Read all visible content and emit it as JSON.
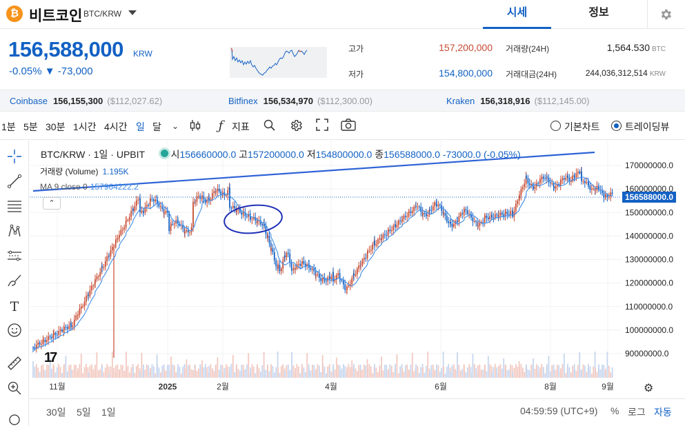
{
  "header": {
    "coin_name": "비트코인",
    "pair": "BTC/KRW",
    "tabs": [
      {
        "label": "시세"
      },
      {
        "label": "정보"
      }
    ]
  },
  "price": {
    "current": "156,588,000",
    "unit": "KRW",
    "change_pct": "-0.05%",
    "change_arrow": "▼",
    "change_abs": "-73,000"
  },
  "stats": {
    "high_label": "고가",
    "high_value": "157,200,000",
    "low_label": "저가",
    "low_value": "154,800,000",
    "vol_label": "거래량(24H)",
    "vol_value": "1,564.530",
    "vol_unit": "BTC",
    "amt_label": "거래대금(24H)",
    "amt_value": "244,036,312,514",
    "amt_unit": "KRW"
  },
  "exchanges": [
    {
      "name": "Coinbase",
      "krw": "156,155,300",
      "usd": "($112,027.62)"
    },
    {
      "name": "Bitfinex",
      "krw": "156,534,970",
      "usd": "($112,300.00)"
    },
    {
      "name": "Kraken",
      "krw": "156,318,916",
      "usd": "($112,145.00)"
    }
  ],
  "toolbar": {
    "intervals": [
      "1분",
      "5분",
      "30분",
      "1시간",
      "4시간",
      "일",
      "달"
    ],
    "active_interval": "일",
    "indicator_label": "지표",
    "view_basic": "기본차트",
    "view_tv": "트레이딩뷰"
  },
  "legend": {
    "symbol": "BTC/KRW · 1일 · UPBIT",
    "open_label": "시",
    "open": "156660000.0",
    "high_label": "고",
    "high": "157200000.0",
    "low_label": "저",
    "low": "154800000.0",
    "close_label": "종",
    "close": "156588000.0",
    "change": "-73000.0 (-0.05%)",
    "volume_label": "거래량 (Volume)",
    "volume_value": "1.195K",
    "ma_label": "MA 9 close 0",
    "ma_value": "157964222.2"
  },
  "icons": {
    "toolbar": [
      "candle-icon",
      "fx-icon",
      "magnifier-icon",
      "gear-icon",
      "fullscreen-icon",
      "camera-icon"
    ],
    "left": [
      "crosshair-icon",
      "trendline-icon",
      "fib-icon",
      "pattern-icon",
      "projection-icon",
      "brush-icon",
      "text-icon",
      "emoji-icon",
      "ruler-icon",
      "zoom-icon",
      "magnet-icon"
    ]
  },
  "chart_data": {
    "type": "candlestick",
    "price_axis": [
      "170000000.0",
      "160000000.0",
      "150000000.0",
      "140000000.0",
      "130000000.0",
      "120000000.0",
      "110000000.0",
      "100000000.0",
      "90000000.0"
    ],
    "current_price_label": "156588000.0",
    "x_ticks": [
      "11월",
      "2025",
      "2월",
      "4월",
      "6월",
      "8월",
      "9월"
    ],
    "ylim": [
      85000000,
      175000000
    ],
    "colors": {
      "up": "#c84a31",
      "down": "#1261c4",
      "ma": "#3d8ce6",
      "trendline": "#2e63d6"
    }
  },
  "bottom": {
    "ranges": [
      "30일",
      "5일",
      "1일"
    ],
    "time": "04:59:59 (UTC+9)",
    "pct": "%",
    "log": "로그",
    "auto": "자동"
  }
}
